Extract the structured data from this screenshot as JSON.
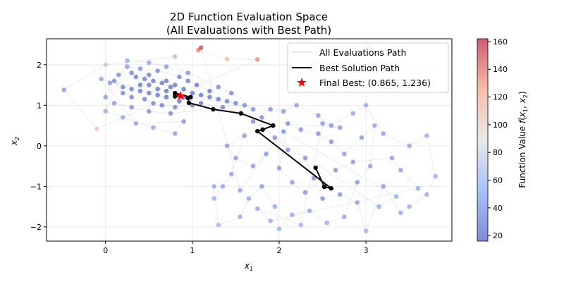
{
  "chart_data": {
    "type": "scatter",
    "title": "2D Function Evaluation Space",
    "subtitle": "(All Evaluations with Best Path)",
    "xlabel": "x",
    "xlabel_sub": "1",
    "ylabel": "x",
    "ylabel_sub": "2",
    "xlim": [
      -0.68,
      3.99
    ],
    "ylim": [
      -2.35,
      2.64
    ],
    "xticks": [
      0,
      1,
      2,
      3
    ],
    "yticks": [
      -2,
      -1,
      0,
      1,
      2
    ],
    "grid": true,
    "legend_position": "top-right",
    "legend": {
      "all": "All Evaluations Path",
      "best": "Best Solution Path",
      "final": "Final Best: (0.865, 1.236)"
    },
    "colorbar": {
      "label": "Function Value f(x1, x2)",
      "label_prefix": "Function Value ",
      "ticks": [
        20,
        40,
        60,
        80,
        100,
        120,
        140,
        160
      ],
      "range": [
        16,
        162
      ],
      "colormap": "coolwarm"
    },
    "colors": {
      "best_path": "#000000",
      "final_star": "#ff0000",
      "grid": "#e6e6e6",
      "all_path": "#cccccc"
    },
    "evaluations": [
      [
        0.5,
        1.5,
        22
      ],
      [
        0.6,
        1.4,
        20
      ],
      [
        0.7,
        1.35,
        20
      ],
      [
        0.75,
        1.45,
        21
      ],
      [
        0.65,
        1.55,
        22
      ],
      [
        0.55,
        1.6,
        23
      ],
      [
        0.45,
        1.65,
        24
      ],
      [
        0.4,
        1.5,
        23
      ],
      [
        0.35,
        1.7,
        26
      ],
      [
        0.3,
        1.8,
        28
      ],
      [
        0.5,
        1.75,
        25
      ],
      [
        0.7,
        1.6,
        22
      ],
      [
        0.8,
        1.5,
        21
      ],
      [
        0.9,
        1.4,
        20
      ],
      [
        1.0,
        1.3,
        20
      ],
      [
        1.1,
        1.25,
        21
      ],
      [
        1.2,
        1.2,
        22
      ],
      [
        1.3,
        1.15,
        24
      ],
      [
        1.4,
        1.1,
        26
      ],
      [
        1.5,
        1.05,
        28
      ],
      [
        0.9,
        1.2,
        19
      ],
      [
        0.85,
        1.1,
        20
      ],
      [
        0.7,
        1.2,
        21
      ],
      [
        0.6,
        1.25,
        22
      ],
      [
        0.5,
        1.3,
        23
      ],
      [
        0.4,
        1.35,
        24
      ],
      [
        0.3,
        1.4,
        26
      ],
      [
        0.2,
        1.45,
        28
      ],
      [
        0.1,
        1.6,
        32
      ],
      [
        0.2,
        1.3,
        30
      ],
      [
        0.3,
        1.2,
        28
      ],
      [
        0.45,
        1.15,
        27
      ],
      [
        0.55,
        1.05,
        27
      ],
      [
        0.65,
        1.0,
        26
      ],
      [
        0.8,
        0.95,
        25
      ],
      [
        1.0,
        1.0,
        24
      ],
      [
        1.1,
        1.05,
        24
      ],
      [
        1.2,
        1.35,
        23
      ],
      [
        1.05,
        1.5,
        24
      ],
      [
        0.95,
        1.6,
        26
      ],
      [
        0.85,
        1.7,
        28
      ],
      [
        0.6,
        1.85,
        32
      ],
      [
        0.4,
        1.9,
        35
      ],
      [
        0.25,
        1.95,
        38
      ],
      [
        0.15,
        1.75,
        36
      ],
      [
        0.05,
        1.55,
        38
      ],
      [
        0.0,
        1.2,
        40
      ],
      [
        0.1,
        1.05,
        40
      ],
      [
        0.3,
        0.95,
        35
      ],
      [
        0.5,
        0.85,
        33
      ],
      [
        0.75,
        0.8,
        30
      ],
      [
        1.35,
        0.95,
        28
      ],
      [
        1.6,
        1.0,
        30
      ],
      [
        1.7,
        0.9,
        32
      ],
      [
        1.45,
        1.3,
        30
      ],
      [
        1.3,
        1.45,
        30
      ],
      [
        0.95,
        1.8,
        35
      ],
      [
        0.7,
        1.95,
        40
      ],
      [
        0.5,
        2.05,
        45
      ],
      [
        0.25,
        2.1,
        50
      ],
      [
        0.0,
        0.85,
        48
      ],
      [
        0.2,
        0.7,
        45
      ],
      [
        0.55,
        0.45,
        45
      ],
      [
        0.8,
        0.3,
        42
      ],
      [
        0.9,
        0.6,
        36
      ],
      [
        0.35,
        0.55,
        45
      ],
      [
        -0.05,
        1.65,
        45
      ],
      [
        1.8,
        0.7,
        35
      ],
      [
        1.9,
        0.9,
        36
      ],
      [
        2.05,
        0.85,
        38
      ],
      [
        2.2,
        1.0,
        42
      ],
      [
        2.45,
        0.75,
        40
      ],
      [
        2.6,
        0.5,
        38
      ],
      [
        2.85,
        0.8,
        45
      ],
      [
        3.0,
        1.0,
        50
      ],
      [
        3.2,
        0.3,
        42
      ],
      [
        3.5,
        0.0,
        45
      ],
      [
        3.7,
        0.25,
        48
      ],
      [
        3.8,
        -0.75,
        50
      ],
      [
        3.7,
        -1.2,
        52
      ],
      [
        3.5,
        -1.5,
        50
      ],
      [
        3.4,
        -1.65,
        48
      ],
      [
        3.2,
        -1.0,
        40
      ],
      [
        3.0,
        -2.1,
        55
      ],
      [
        2.9,
        -1.4,
        42
      ],
      [
        2.7,
        -1.2,
        38
      ],
      [
        2.5,
        -1.3,
        36
      ],
      [
        2.4,
        -0.8,
        34
      ],
      [
        2.3,
        -0.3,
        35
      ],
      [
        2.1,
        -0.1,
        36
      ],
      [
        1.95,
        0.2,
        34
      ],
      [
        1.85,
        -0.2,
        38
      ],
      [
        1.7,
        -0.5,
        40
      ],
      [
        1.5,
        -0.3,
        42
      ],
      [
        1.4,
        0.0,
        40
      ],
      [
        1.6,
        0.25,
        38
      ],
      [
        1.45,
        -0.7,
        44
      ],
      [
        1.35,
        -1.0,
        46
      ],
      [
        1.25,
        -1.3,
        50
      ],
      [
        1.25,
        -1.0,
        48
      ],
      [
        1.3,
        -1.95,
        55
      ],
      [
        1.55,
        -1.75,
        50
      ],
      [
        1.65,
        -1.3,
        46
      ],
      [
        1.8,
        -1.0,
        42
      ],
      [
        1.95,
        -1.5,
        46
      ],
      [
        2.0,
        -2.05,
        52
      ],
      [
        2.15,
        -1.7,
        48
      ],
      [
        2.35,
        -1.6,
        45
      ],
      [
        2.55,
        -1.9,
        48
      ],
      [
        2.75,
        -1.75,
        46
      ],
      [
        2.9,
        -0.9,
        40
      ],
      [
        3.05,
        -0.5,
        42
      ],
      [
        3.1,
        0.5,
        45
      ],
      [
        2.95,
        0.2,
        40
      ],
      [
        2.75,
        -0.2,
        38
      ],
      [
        2.6,
        0.1,
        36
      ],
      [
        2.45,
        0.3,
        36
      ],
      [
        2.25,
        0.4,
        35
      ],
      [
        2.1,
        0.55,
        35
      ],
      [
        2.0,
        -0.55,
        38
      ],
      [
        2.15,
        -0.9,
        38
      ],
      [
        2.3,
        -1.15,
        36
      ],
      [
        2.65,
        -0.6,
        36
      ],
      [
        2.85,
        -0.4,
        38
      ],
      [
        3.3,
        -0.3,
        42
      ],
      [
        3.4,
        -0.6,
        44
      ],
      [
        3.6,
        -1.05,
        48
      ],
      [
        1.9,
        -1.85,
        50
      ],
      [
        1.75,
        -1.55,
        48
      ],
      [
        2.25,
        -1.95,
        52
      ],
      [
        2.5,
        0.55,
        38
      ],
      [
        2.7,
        0.45,
        40
      ],
      [
        1.7,
        0.6,
        34
      ],
      [
        3.15,
        -1.5,
        46
      ],
      [
        3.35,
        -1.25,
        46
      ],
      [
        2.05,
        0.35,
        34
      ],
      [
        1.55,
        -1.1,
        44
      ],
      [
        1.1,
        2.42,
        155
      ],
      [
        1.07,
        2.36,
        140
      ],
      [
        1.4,
        2.14,
        115
      ],
      [
        1.75,
        2.13,
        135
      ],
      [
        -0.1,
        0.42,
        110
      ],
      [
        -0.48,
        1.38,
        40
      ],
      [
        0.0,
        2.0,
        70
      ],
      [
        0.8,
        2.2,
        65
      ]
    ],
    "best_path": [
      [
        2.42,
        -0.54
      ],
      [
        2.52,
        -1.01
      ],
      [
        2.6,
        -1.05
      ],
      [
        1.75,
        0.36
      ],
      [
        1.81,
        0.4
      ],
      [
        1.93,
        0.5
      ],
      [
        1.56,
        0.8
      ],
      [
        1.24,
        0.9
      ],
      [
        0.96,
        1.06
      ],
      [
        0.95,
        1.18
      ],
      [
        0.98,
        1.2
      ],
      [
        0.8,
        1.3
      ],
      [
        0.8,
        1.22
      ],
      [
        0.865,
        1.236
      ]
    ],
    "final_best": [
      0.865,
      1.236
    ]
  }
}
